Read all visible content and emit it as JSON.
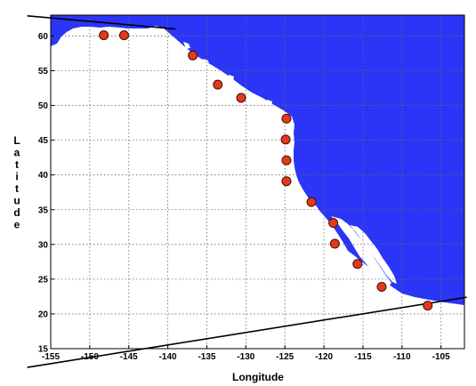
{
  "map": {
    "xlabel": "Longitude",
    "ylabel": "Latitude",
    "xlim": [
      -155,
      -102
    ],
    "ylim": [
      15,
      63
    ],
    "x_ticks": [
      -155,
      -150,
      -145,
      -140,
      -135,
      -130,
      -125,
      -120,
      -115,
      -110,
      -105
    ],
    "y_ticks": [
      15,
      20,
      25,
      30,
      35,
      40,
      45,
      50,
      55,
      60
    ],
    "grid": true,
    "colors": {
      "land": "#2a35f5",
      "marker_fill": "#e23a1a",
      "marker_edge": "#4a0a00",
      "line": "#000000",
      "grid": "#6a6a6a"
    },
    "stations": [
      {
        "lon": -148.2,
        "lat": 60.1
      },
      {
        "lon": -145.6,
        "lat": 60.1
      },
      {
        "lon": -136.8,
        "lat": 57.2
      },
      {
        "lon": -133.6,
        "lat": 53.0
      },
      {
        "lon": -130.6,
        "lat": 51.1
      },
      {
        "lon": -124.8,
        "lat": 48.1
      },
      {
        "lon": -124.9,
        "lat": 45.1
      },
      {
        "lon": -124.8,
        "lat": 42.1
      },
      {
        "lon": -124.8,
        "lat": 39.1
      },
      {
        "lon": -121.6,
        "lat": 36.1
      },
      {
        "lon": -118.8,
        "lat": 33.1
      },
      {
        "lon": -118.6,
        "lat": 30.1
      },
      {
        "lon": -115.7,
        "lat": 27.2
      },
      {
        "lon": -112.6,
        "lat": 23.9
      },
      {
        "lon": -106.7,
        "lat": 21.2
      }
    ],
    "boundary_lines": [
      {
        "from": {
          "lon": -158.0,
          "lat": 62.9
        },
        "to": {
          "lon": -139.0,
          "lat": 61.0
        }
      },
      {
        "from": {
          "lon": -158.0,
          "lat": 12.3
        },
        "to": {
          "lon": -101.7,
          "lat": 22.4
        }
      }
    ]
  }
}
